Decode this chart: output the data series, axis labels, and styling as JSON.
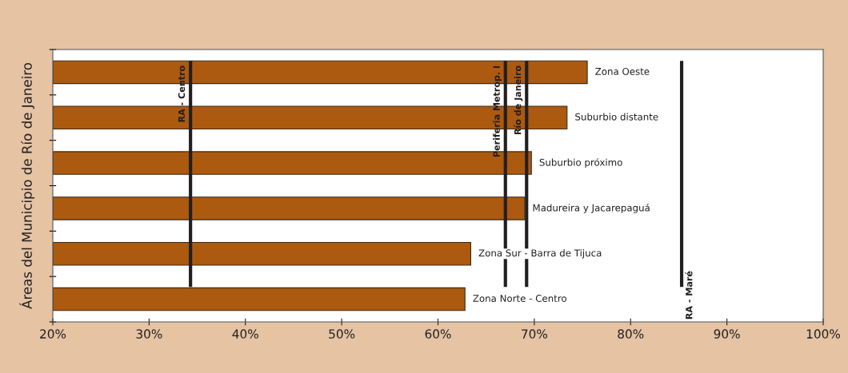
{
  "chart_data": {
    "type": "bar",
    "orientation": "horizontal",
    "ylabel": "Áreas del Municipio de Río de Janeiro",
    "categories": [
      "Zona Oeste",
      "Suburbio distante",
      "Suburbio próximo",
      "Madureira y Jacarepaguá",
      "Zona Sur - Barra de Tijuca",
      "Zona Norte - Centro"
    ],
    "values": [
      75.5,
      73.4,
      69.7,
      69.0,
      63.4,
      62.8
    ],
    "color": "#ab5a10",
    "xlim": [
      20,
      100
    ],
    "xticks": [
      {
        "value": 20,
        "label": "20%"
      },
      {
        "value": 30,
        "label": "30%"
      },
      {
        "value": 40,
        "label": "40%"
      },
      {
        "value": 50,
        "label": "50%"
      },
      {
        "value": 60,
        "label": "60%"
      },
      {
        "value": 70,
        "label": "70%"
      },
      {
        "value": 80,
        "label": "80%"
      },
      {
        "value": 90,
        "label": "90%"
      },
      {
        "value": 100,
        "label": "100%"
      }
    ],
    "ref_lines": [
      {
        "axis": "x",
        "value": 34.3,
        "label": "RA - Centro",
        "color": "#231f20"
      },
      {
        "axis": "x",
        "value": 67.0,
        "label": "Periferia Metrop. I",
        "color": "#231f20"
      },
      {
        "axis": "x",
        "value": 69.2,
        "label": "Río de Janeiro",
        "color": "#231f20"
      },
      {
        "axis": "x",
        "value": 85.3,
        "label": "RA - Maré",
        "color": "#231f20"
      }
    ],
    "grid": false,
    "legend": false
  }
}
